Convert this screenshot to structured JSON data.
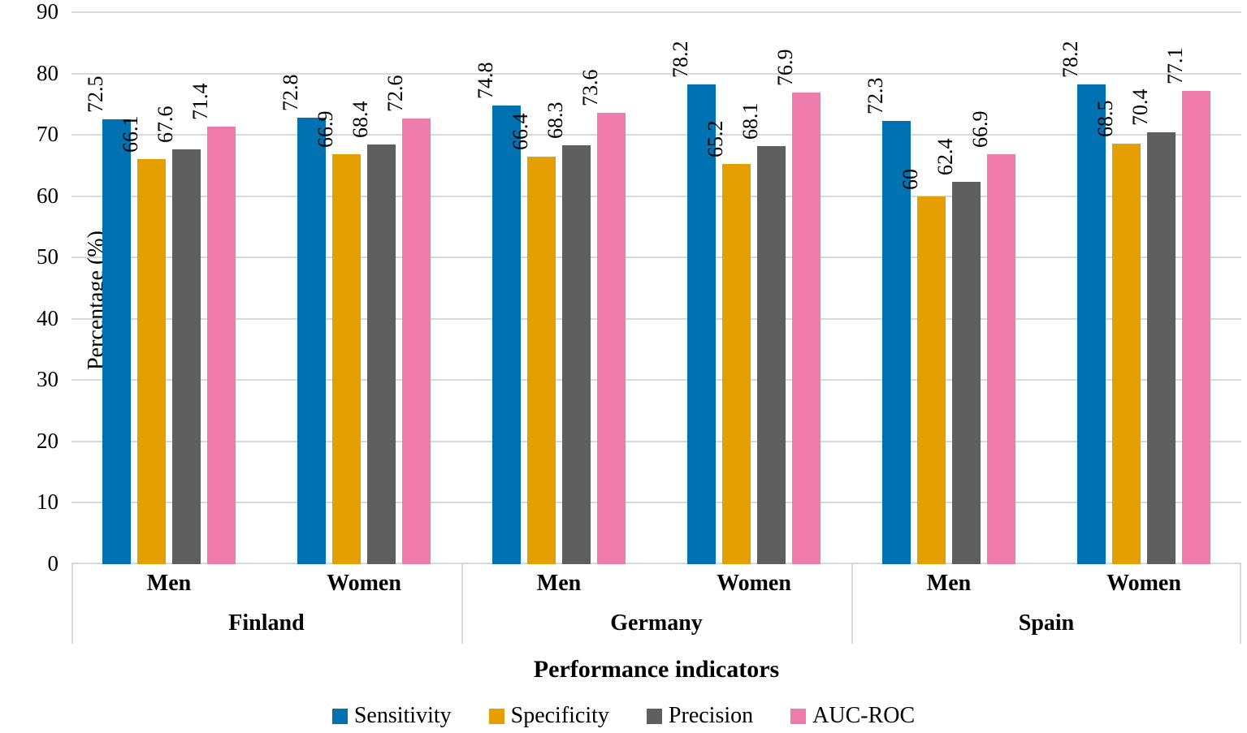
{
  "chart_data": {
    "type": "bar",
    "title": "",
    "xlabel": "Performance indicators",
    "ylabel": "Percentage (%)",
    "ylim": [
      0,
      90
    ],
    "yticks": [
      0,
      10,
      20,
      30,
      40,
      50,
      60,
      70,
      80,
      90
    ],
    "grid": true,
    "legend_position": "bottom",
    "gridline_color": "#d9d9d9",
    "axis_line_color": "#d9d9d9",
    "countries": [
      "Finland",
      "Germany",
      "Spain"
    ],
    "categories": [
      {
        "country": "Finland",
        "gender": "Men"
      },
      {
        "country": "Finland",
        "gender": "Women"
      },
      {
        "country": "Germany",
        "gender": "Men"
      },
      {
        "country": "Germany",
        "gender": "Women"
      },
      {
        "country": "Spain",
        "gender": "Men"
      },
      {
        "country": "Spain",
        "gender": "Women"
      }
    ],
    "series": [
      {
        "name": "Sensitivity",
        "color": "#0072B2",
        "values": [
          72.5,
          72.8,
          74.8,
          78.2,
          72.3,
          78.2
        ]
      },
      {
        "name": "Specificity",
        "color": "#E69F00",
        "values": [
          66.1,
          66.9,
          66.4,
          65.2,
          60,
          68.5
        ]
      },
      {
        "name": "Precision",
        "color": "#5F5F5F",
        "values": [
          67.6,
          68.4,
          68.3,
          68.1,
          62.4,
          70.4
        ]
      },
      {
        "name": "AUC-ROC",
        "color": "#EF7BAB",
        "values": [
          71.4,
          72.6,
          73.6,
          76.9,
          66.9,
          77.1
        ]
      }
    ]
  }
}
